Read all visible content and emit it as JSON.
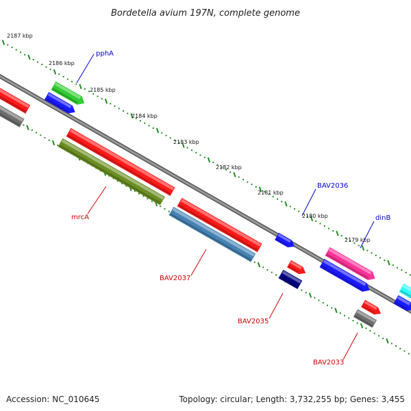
{
  "title": "Bordetella avium 197N, complete genome",
  "accession": "Accession: NC_010645",
  "topology": "Topology: circular; Length: 3,732,255 bp; Genes: 3,455",
  "colors": {
    "backbone": "#8c8c8c",
    "tick": "#228b22",
    "label_forward": "#0000cc",
    "label_reverse": "#cc0000",
    "red": "#ff1a1a",
    "blue": "#1a1aff",
    "green": "#33cc33",
    "olive": "#6b8e23",
    "steelblue": "#4682b4",
    "navy": "#000080",
    "gray": "#6e6e6e",
    "pink": "#ff3399",
    "cyan": "#33ffff"
  },
  "scale_labels": [
    "2187 kbp",
    "2186 kbp",
    "2185 kbp",
    "2184 kbp",
    "2183 kbp",
    "2182 kbp",
    "2181 kbp",
    "2180 kbp",
    "2179 kbp"
  ],
  "gene_labels": [
    {
      "text": "pphA",
      "strand": "forward"
    },
    {
      "text": "BAV2036",
      "strand": "forward"
    },
    {
      "text": "dinB",
      "strand": "forward"
    },
    {
      "text": "mrcA",
      "strand": "reverse"
    },
    {
      "text": "BAV2037",
      "strand": "reverse"
    },
    {
      "text": "BAV2035",
      "strand": "reverse"
    },
    {
      "text": "BAV2033",
      "strand": "reverse"
    }
  ],
  "features": [
    {
      "color": "red"
    },
    {
      "color": "gray"
    },
    {
      "color": "green"
    },
    {
      "color": "blue"
    },
    {
      "color": "red"
    },
    {
      "color": "olive"
    },
    {
      "color": "red"
    },
    {
      "color": "steelblue"
    },
    {
      "color": "blue"
    },
    {
      "color": "red"
    },
    {
      "color": "navy"
    },
    {
      "color": "pink"
    },
    {
      "color": "blue"
    },
    {
      "color": "red"
    },
    {
      "color": "gray"
    },
    {
      "color": "cyan"
    },
    {
      "color": "blue"
    }
  ]
}
